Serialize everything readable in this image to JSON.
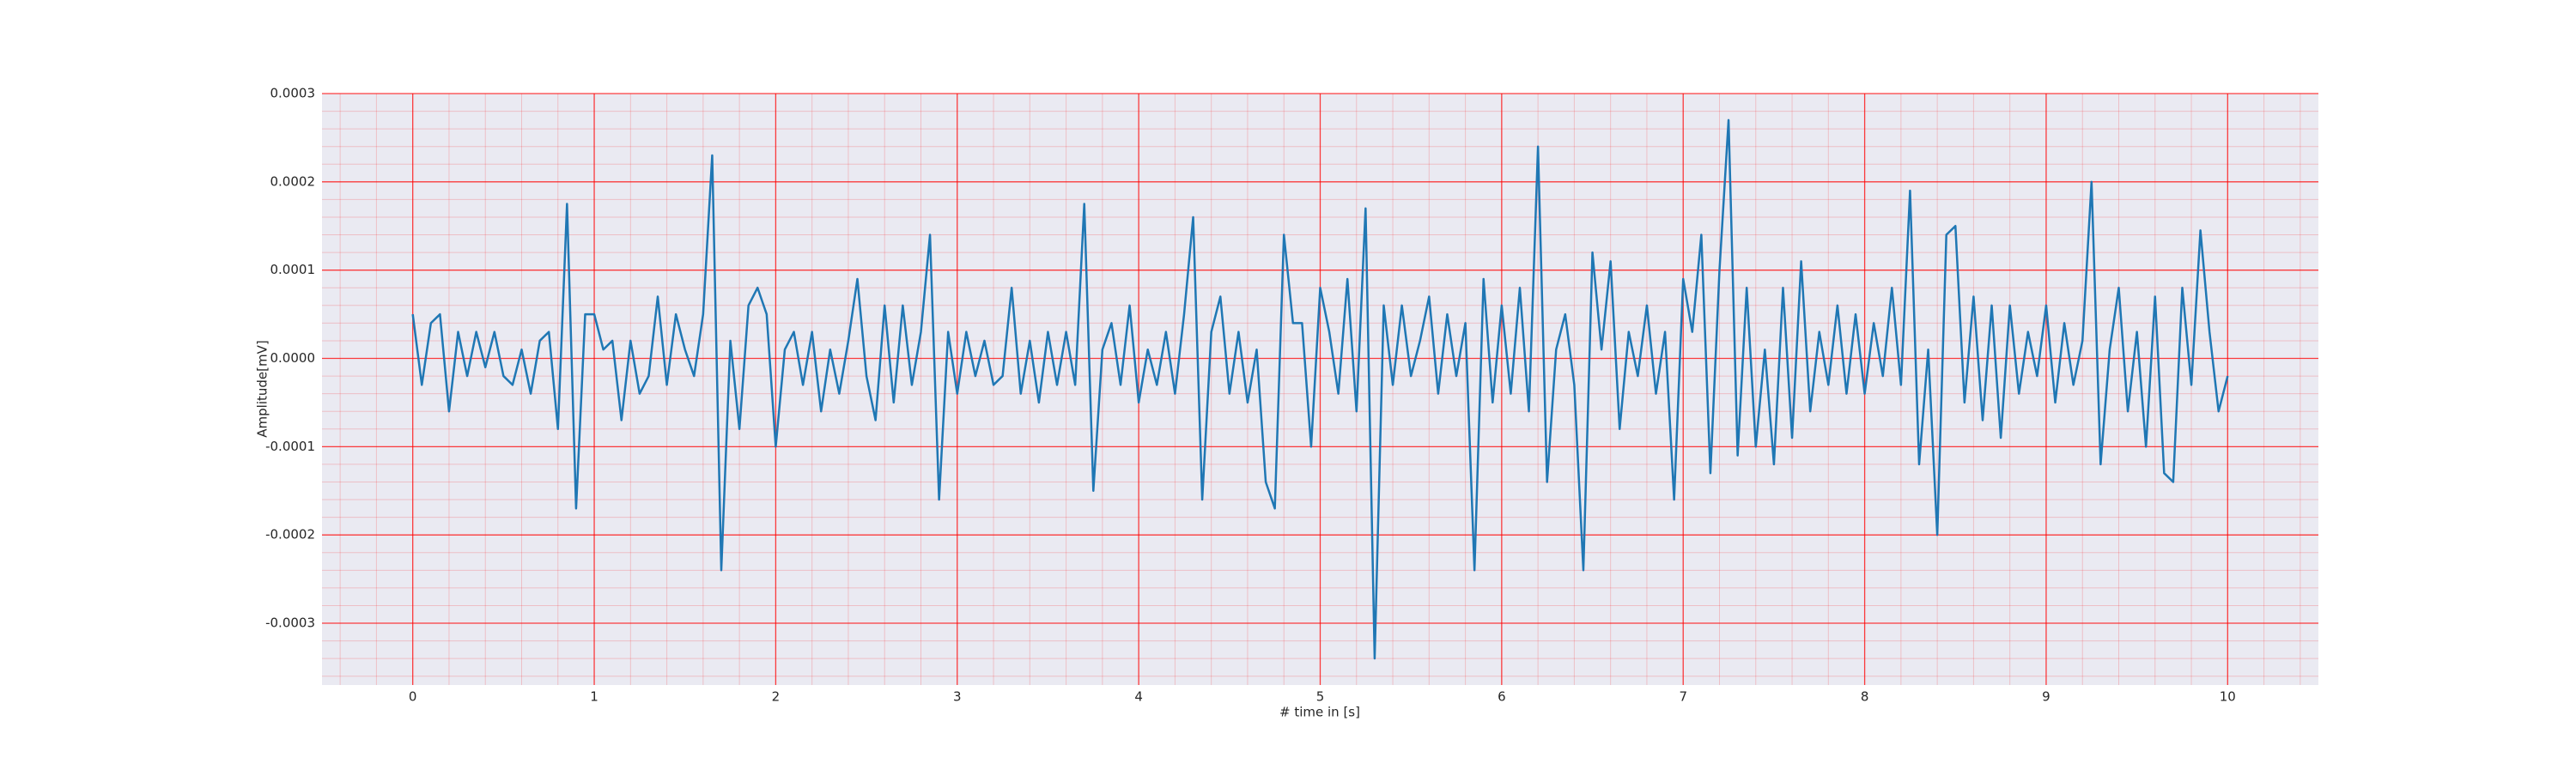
{
  "chart_data": {
    "type": "line",
    "xlabel": "# time in [s]",
    "ylabel": "Amplitude[mV]",
    "color": "#1f77b4",
    "grid": true,
    "grid_color": "#ff0000",
    "minor_grid": true,
    "background": "#eaeaf2",
    "xlim": [
      -0.5,
      10.5
    ],
    "ylim": [
      -0.00037,
      0.0003
    ],
    "xticks": [
      0,
      1,
      2,
      3,
      4,
      5,
      6,
      7,
      8,
      9,
      10
    ],
    "yticks": [
      -0.0003,
      -0.0002,
      -0.0001,
      {
        "value": 0,
        "label": "0.0000"
      },
      0.0001,
      0.0002,
      0.0003
    ],
    "x": [
      0,
      0.05,
      0.1,
      0.15,
      0.2,
      0.25,
      0.3,
      0.35,
      0.4,
      0.45,
      0.5,
      0.55,
      0.6,
      0.65,
      0.7,
      0.75,
      0.8,
      0.85,
      0.9,
      0.95,
      1,
      1.05,
      1.1,
      1.15,
      1.2,
      1.25,
      1.3,
      1.35,
      1.4,
      1.45,
      1.5,
      1.55,
      1.6,
      1.65,
      1.7,
      1.75,
      1.8,
      1.85,
      1.9,
      1.95,
      2,
      2.05,
      2.1,
      2.15,
      2.2,
      2.25,
      2.3,
      2.35,
      2.4,
      2.45,
      2.5,
      2.55,
      2.6,
      2.65,
      2.7,
      2.75,
      2.8,
      2.85,
      2.9,
      2.95,
      3,
      3.05,
      3.1,
      3.15,
      3.2,
      3.25,
      3.3,
      3.35,
      3.4,
      3.45,
      3.5,
      3.55,
      3.6,
      3.65,
      3.7,
      3.75,
      3.8,
      3.85,
      3.9,
      3.95,
      4,
      4.05,
      4.1,
      4.15,
      4.2,
      4.25,
      4.3,
      4.35,
      4.4,
      4.45,
      4.5,
      4.55,
      4.6,
      4.65,
      4.7,
      4.75,
      4.8,
      4.85,
      4.9,
      4.95,
      5,
      5.05,
      5.1,
      5.15,
      5.2,
      5.25,
      5.3,
      5.35,
      5.4,
      5.45,
      5.5,
      5.55,
      5.6,
      5.65,
      5.7,
      5.75,
      5.8,
      5.85,
      5.9,
      5.95,
      6,
      6.05,
      6.1,
      6.15,
      6.2,
      6.25,
      6.3,
      6.35,
      6.4,
      6.45,
      6.5,
      6.55,
      6.6,
      6.65,
      6.7,
      6.75,
      6.8,
      6.85,
      6.9,
      6.95,
      7,
      7.05,
      7.1,
      7.15,
      7.2,
      7.25,
      7.3,
      7.35,
      7.4,
      7.45,
      7.5,
      7.55,
      7.6,
      7.65,
      7.7,
      7.75,
      7.8,
      7.85,
      7.9,
      7.95,
      8,
      8.05,
      8.1,
      8.15,
      8.2,
      8.25,
      8.3,
      8.35,
      8.4,
      8.45,
      8.5,
      8.55,
      8.6,
      8.65,
      8.7,
      8.75,
      8.8,
      8.85,
      8.9,
      8.95,
      9,
      9.05,
      9.1,
      9.15,
      9.2,
      9.25,
      9.3,
      9.35,
      9.4,
      9.45,
      9.5,
      9.55,
      9.6,
      9.65,
      9.7,
      9.75,
      9.8,
      9.85,
      9.9,
      9.95,
      10
    ],
    "values": [
      5e-05,
      -3e-05,
      4e-05,
      5e-05,
      -6e-05,
      3e-05,
      -2e-05,
      3e-05,
      -1e-05,
      3e-05,
      -2e-05,
      -3e-05,
      1e-05,
      -4e-05,
      2e-05,
      3e-05,
      -8e-05,
      0.000175,
      -0.00017,
      5e-05,
      5e-05,
      1e-05,
      2e-05,
      -7e-05,
      2e-05,
      -4e-05,
      -2e-05,
      7e-05,
      -3e-05,
      5e-05,
      1e-05,
      -2e-05,
      5e-05,
      0.00023,
      -0.00024,
      2e-05,
      -8e-05,
      6e-05,
      8e-05,
      5e-05,
      -0.0001,
      1e-05,
      3e-05,
      -3e-05,
      3e-05,
      -6e-05,
      1e-05,
      -4e-05,
      2e-05,
      9e-05,
      -2e-05,
      -7e-05,
      6e-05,
      -5e-05,
      6e-05,
      -3e-05,
      3e-05,
      0.00014,
      -0.00016,
      3e-05,
      -4e-05,
      3e-05,
      -2e-05,
      2e-05,
      -3e-05,
      -2e-05,
      8e-05,
      -4e-05,
      2e-05,
      -5e-05,
      3e-05,
      -3e-05,
      3e-05,
      -3e-05,
      0.000175,
      -0.00015,
      1e-05,
      4e-05,
      -3e-05,
      6e-05,
      -5e-05,
      1e-05,
      -3e-05,
      3e-05,
      -4e-05,
      5e-05,
      0.00016,
      -0.00016,
      3e-05,
      7e-05,
      -4e-05,
      3e-05,
      -5e-05,
      1e-05,
      -0.00014,
      -0.00017,
      0.00014,
      4e-05,
      4e-05,
      -0.0001,
      8e-05,
      3e-05,
      -4e-05,
      9e-05,
      -6e-05,
      0.00017,
      -0.00034,
      6e-05,
      -3e-05,
      6e-05,
      -2e-05,
      2e-05,
      7e-05,
      -4e-05,
      5e-05,
      -2e-05,
      4e-05,
      -0.00024,
      9e-05,
      -5e-05,
      6e-05,
      -4e-05,
      8e-05,
      -6e-05,
      0.00024,
      -0.00014,
      1e-05,
      5e-05,
      -3e-05,
      -0.00024,
      0.00012,
      1e-05,
      0.00011,
      -8e-05,
      3e-05,
      -2e-05,
      6e-05,
      -4e-05,
      3e-05,
      -0.00016,
      9e-05,
      3e-05,
      0.00014,
      -0.00013,
      0.0001,
      0.00027,
      -0.00011,
      8e-05,
      -0.0001,
      1e-05,
      -0.00012,
      8e-05,
      -9e-05,
      0.00011,
      -6e-05,
      3e-05,
      -3e-05,
      6e-05,
      -4e-05,
      5e-05,
      -4e-05,
      4e-05,
      -2e-05,
      8e-05,
      -3e-05,
      0.00019,
      -0.00012,
      1e-05,
      -0.0002,
      0.00014,
      0.00015,
      -5e-05,
      7e-05,
      -7e-05,
      6e-05,
      -9e-05,
      6e-05,
      -4e-05,
      3e-05,
      -2e-05,
      6e-05,
      -5e-05,
      4e-05,
      -3e-05,
      2e-05,
      0.0002,
      -0.00012,
      1e-05,
      8e-05,
      -6e-05,
      3e-05,
      -0.0001,
      7e-05,
      -0.00013,
      -0.00014,
      8e-05,
      -3e-05,
      0.000145,
      3e-05,
      -6e-05,
      -2e-05
    ]
  }
}
